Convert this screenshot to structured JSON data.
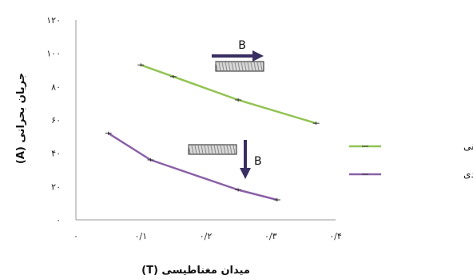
{
  "chart_data": {
    "type": "line",
    "xlabel": "میدان مغناطیسی (T)",
    "ylabel": "جریان بحرانی (A)",
    "xlim": [
      0,
      0.4
    ],
    "ylim": [
      0,
      120
    ],
    "x_ticks": [
      "۰",
      "۰/۱",
      "۰/۲",
      "۰/۳",
      "۰/۴"
    ],
    "y_ticks": [
      "۰",
      "۲۰",
      "۴۰",
      "۶۰",
      "۸۰",
      "۱۰۰",
      "۱۲۰"
    ],
    "grid": false,
    "legend_position": "right",
    "series": [
      {
        "name": "مؤلفه‌ی افقی",
        "color": "#92c353",
        "points": [
          [
            0.1,
            93
          ],
          [
            0.15,
            86
          ],
          [
            0.25,
            72
          ],
          [
            0.37,
            58
          ]
        ]
      },
      {
        "name": "مؤلفه‌ی عمودی",
        "color": "#8a61a8",
        "points": [
          [
            0.05,
            52
          ],
          [
            0.115,
            36
          ],
          [
            0.25,
            18
          ],
          [
            0.31,
            12
          ]
        ]
      }
    ],
    "annotations": [
      {
        "label": "B",
        "direction": "horizontal"
      },
      {
        "label": "B",
        "direction": "vertical"
      }
    ]
  }
}
